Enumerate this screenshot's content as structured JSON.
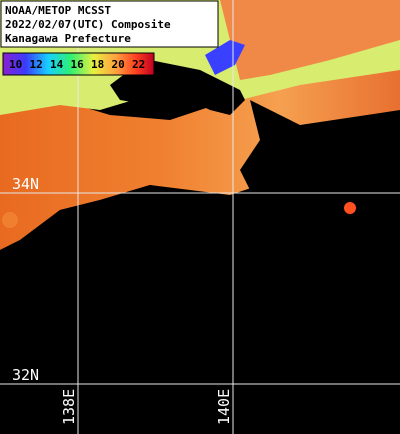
{
  "header": {
    "lines": [
      "NOAA/METOP MCSST",
      "2022/02/07(UTC) Composite",
      "Kanagawa Prefecture"
    ]
  },
  "colorbar": {
    "ticks": [
      10,
      12,
      14,
      16,
      18,
      20,
      22
    ]
  },
  "grid": {
    "latitudes": [
      "34N",
      "32N"
    ],
    "longitudes": [
      "138E",
      "140E"
    ]
  }
}
